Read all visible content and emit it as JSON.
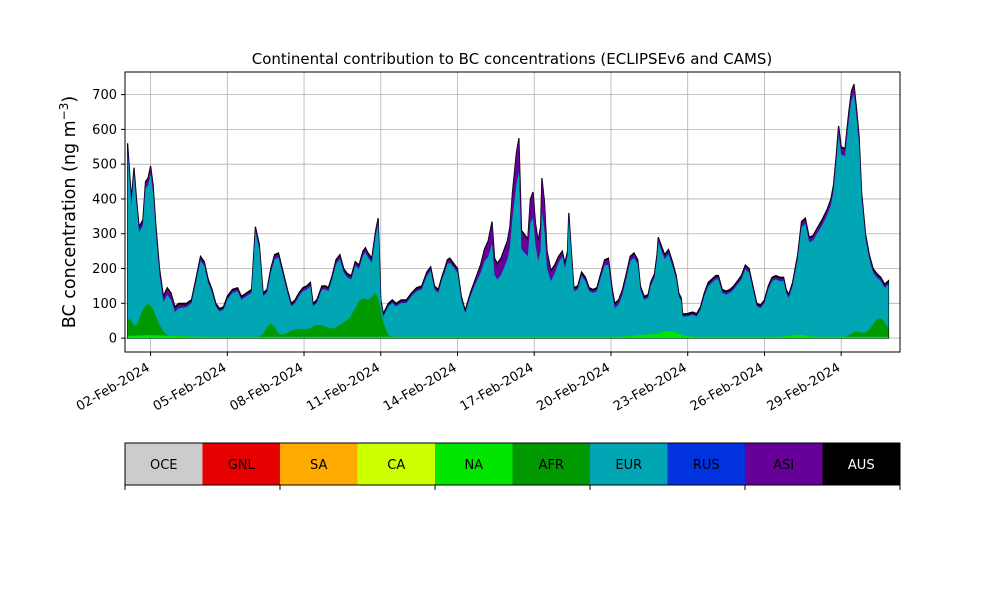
{
  "chart_data": {
    "type": "area",
    "stacked": true,
    "title": "Continental contribution to BC concentrations (ECLIPSEv6 and CAMS)",
    "ylabel_main": "BC concentration (ng m",
    "ylabel_sup": "−3",
    "ylabel_close": ")",
    "xlabel": "",
    "ylim": [
      -40,
      765
    ],
    "yticks": [
      0,
      100,
      200,
      300,
      400,
      500,
      600,
      700
    ],
    "xlim": [
      0.0,
      30.3
    ],
    "xticks": [
      {
        "day": 1.0,
        "label": "02-Feb-2024"
      },
      {
        "day": 4.0,
        "label": "05-Feb-2024"
      },
      {
        "day": 7.0,
        "label": "08-Feb-2024"
      },
      {
        "day": 10.0,
        "label": "11-Feb-2024"
      },
      {
        "day": 13.0,
        "label": "14-Feb-2024"
      },
      {
        "day": 16.0,
        "label": "17-Feb-2024"
      },
      {
        "day": 19.0,
        "label": "20-Feb-2024"
      },
      {
        "day": 22.0,
        "label": "23-Feb-2024"
      },
      {
        "day": 25.0,
        "label": "26-Feb-2024"
      },
      {
        "day": 28.0,
        "label": "29-Feb-2024"
      }
    ],
    "grid": true,
    "x_note": "x values are in days; x tick labels are the corresponding dates",
    "total_points": [
      [
        0.1,
        560
      ],
      [
        0.25,
        400
      ],
      [
        0.35,
        490
      ],
      [
        0.45,
        400
      ],
      [
        0.55,
        320
      ],
      [
        0.7,
        340
      ],
      [
        0.8,
        450
      ],
      [
        0.9,
        460
      ],
      [
        1.0,
        495
      ],
      [
        1.1,
        440
      ],
      [
        1.2,
        330
      ],
      [
        1.35,
        200
      ],
      [
        1.5,
        120
      ],
      [
        1.65,
        145
      ],
      [
        1.8,
        130
      ],
      [
        1.95,
        90
      ],
      [
        2.1,
        100
      ],
      [
        2.4,
        100
      ],
      [
        2.6,
        110
      ],
      [
        2.8,
        180
      ],
      [
        2.95,
        235
      ],
      [
        3.1,
        220
      ],
      [
        3.25,
        170
      ],
      [
        3.4,
        140
      ],
      [
        3.55,
        100
      ],
      [
        3.7,
        85
      ],
      [
        3.85,
        90
      ],
      [
        4.0,
        120
      ],
      [
        4.2,
        140
      ],
      [
        4.4,
        145
      ],
      [
        4.55,
        120
      ],
      [
        4.75,
        130
      ],
      [
        4.95,
        140
      ],
      [
        5.1,
        320
      ],
      [
        5.25,
        270
      ],
      [
        5.4,
        130
      ],
      [
        5.55,
        140
      ],
      [
        5.7,
        200
      ],
      [
        5.85,
        240
      ],
      [
        6.0,
        245
      ],
      [
        6.15,
        200
      ],
      [
        6.35,
        140
      ],
      [
        6.5,
        100
      ],
      [
        6.65,
        110
      ],
      [
        6.8,
        130
      ],
      [
        6.95,
        145
      ],
      [
        7.1,
        150
      ],
      [
        7.25,
        160
      ],
      [
        7.35,
        100
      ],
      [
        7.5,
        110
      ],
      [
        7.7,
        150
      ],
      [
        7.85,
        150
      ],
      [
        7.95,
        145
      ],
      [
        8.1,
        180
      ],
      [
        8.25,
        225
      ],
      [
        8.4,
        240
      ],
      [
        8.55,
        200
      ],
      [
        8.7,
        185
      ],
      [
        8.85,
        180
      ],
      [
        9.0,
        220
      ],
      [
        9.15,
        210
      ],
      [
        9.3,
        250
      ],
      [
        9.4,
        260
      ],
      [
        9.5,
        245
      ],
      [
        9.65,
        230
      ],
      [
        9.8,
        310
      ],
      [
        9.9,
        345
      ],
      [
        10.0,
        110
      ],
      [
        10.1,
        70
      ],
      [
        10.3,
        100
      ],
      [
        10.45,
        110
      ],
      [
        10.6,
        100
      ],
      [
        10.8,
        110
      ],
      [
        11.0,
        110
      ],
      [
        11.2,
        130
      ],
      [
        11.4,
        145
      ],
      [
        11.6,
        150
      ],
      [
        11.8,
        190
      ],
      [
        11.95,
        205
      ],
      [
        12.1,
        150
      ],
      [
        12.25,
        140
      ],
      [
        12.4,
        180
      ],
      [
        12.5,
        200
      ],
      [
        12.6,
        225
      ],
      [
        12.7,
        230
      ],
      [
        12.85,
        215
      ],
      [
        13.0,
        200
      ],
      [
        13.15,
        120
      ],
      [
        13.3,
        80
      ],
      [
        13.5,
        130
      ],
      [
        13.7,
        170
      ],
      [
        13.9,
        210
      ],
      [
        14.05,
        255
      ],
      [
        14.2,
        280
      ],
      [
        14.35,
        335
      ],
      [
        14.45,
        230
      ],
      [
        14.55,
        215
      ],
      [
        14.7,
        230
      ],
      [
        14.85,
        260
      ],
      [
        14.95,
        280
      ],
      [
        15.05,
        320
      ],
      [
        15.15,
        420
      ],
      [
        15.3,
        530
      ],
      [
        15.4,
        575
      ],
      [
        15.5,
        310
      ],
      [
        15.6,
        300
      ],
      [
        15.75,
        285
      ],
      [
        15.85,
        400
      ],
      [
        15.95,
        420
      ],
      [
        16.05,
        330
      ],
      [
        16.15,
        280
      ],
      [
        16.25,
        320
      ],
      [
        16.3,
        460
      ],
      [
        16.4,
        390
      ],
      [
        16.5,
        250
      ],
      [
        16.65,
        195
      ],
      [
        16.8,
        210
      ],
      [
        16.95,
        235
      ],
      [
        17.1,
        250
      ],
      [
        17.2,
        215
      ],
      [
        17.3,
        250
      ],
      [
        17.35,
        360
      ],
      [
        17.45,
        250
      ],
      [
        17.55,
        145
      ],
      [
        17.7,
        150
      ],
      [
        17.85,
        190
      ],
      [
        18.0,
        175
      ],
      [
        18.15,
        145
      ],
      [
        18.3,
        140
      ],
      [
        18.45,
        145
      ],
      [
        18.6,
        185
      ],
      [
        18.75,
        225
      ],
      [
        18.9,
        230
      ],
      [
        19.05,
        140
      ],
      [
        19.15,
        100
      ],
      [
        19.3,
        110
      ],
      [
        19.45,
        140
      ],
      [
        19.6,
        185
      ],
      [
        19.75,
        235
      ],
      [
        19.9,
        245
      ],
      [
        20.05,
        225
      ],
      [
        20.15,
        150
      ],
      [
        20.3,
        120
      ],
      [
        20.45,
        125
      ],
      [
        20.55,
        160
      ],
      [
        20.7,
        185
      ],
      [
        20.8,
        240
      ],
      [
        20.85,
        290
      ],
      [
        20.95,
        270
      ],
      [
        21.1,
        240
      ],
      [
        21.25,
        255
      ],
      [
        21.4,
        220
      ],
      [
        21.55,
        180
      ],
      [
        21.65,
        130
      ],
      [
        21.75,
        115
      ],
      [
        21.8,
        70
      ],
      [
        21.95,
        70
      ],
      [
        22.2,
        75
      ],
      [
        22.35,
        70
      ],
      [
        22.5,
        90
      ],
      [
        22.65,
        130
      ],
      [
        22.8,
        160
      ],
      [
        22.95,
        170
      ],
      [
        23.1,
        180
      ],
      [
        23.2,
        180
      ],
      [
        23.35,
        140
      ],
      [
        23.5,
        135
      ],
      [
        23.65,
        140
      ],
      [
        23.8,
        150
      ],
      [
        23.95,
        165
      ],
      [
        24.1,
        180
      ],
      [
        24.25,
        210
      ],
      [
        24.4,
        200
      ],
      [
        24.55,
        150
      ],
      [
        24.7,
        100
      ],
      [
        24.85,
        95
      ],
      [
        25.0,
        110
      ],
      [
        25.15,
        150
      ],
      [
        25.3,
        175
      ],
      [
        25.45,
        180
      ],
      [
        25.6,
        175
      ],
      [
        25.75,
        175
      ],
      [
        25.85,
        140
      ],
      [
        25.95,
        125
      ],
      [
        26.1,
        160
      ],
      [
        26.3,
        240
      ],
      [
        26.45,
        335
      ],
      [
        26.6,
        345
      ],
      [
        26.75,
        290
      ],
      [
        26.9,
        295
      ],
      [
        27.05,
        315
      ],
      [
        27.25,
        340
      ],
      [
        27.45,
        370
      ],
      [
        27.6,
        400
      ],
      [
        27.7,
        440
      ],
      [
        27.8,
        520
      ],
      [
        27.9,
        610
      ],
      [
        28.0,
        550
      ],
      [
        28.15,
        545
      ],
      [
        28.3,
        650
      ],
      [
        28.4,
        710
      ],
      [
        28.5,
        730
      ],
      [
        28.6,
        660
      ],
      [
        28.7,
        580
      ],
      [
        28.8,
        420
      ],
      [
        28.95,
        300
      ],
      [
        29.1,
        240
      ],
      [
        29.25,
        200
      ],
      [
        29.4,
        185
      ],
      [
        29.55,
        175
      ],
      [
        29.7,
        155
      ],
      [
        29.85,
        165
      ]
    ],
    "legend": [
      {
        "code": "OCE",
        "color": "#cccccc"
      },
      {
        "code": "GNL",
        "color": "#e60000"
      },
      {
        "code": "SA",
        "color": "#ffaa00"
      },
      {
        "code": "CA",
        "color": "#ccff00"
      },
      {
        "code": "NA",
        "color": "#00e600"
      },
      {
        "code": "AFR",
        "color": "#009900"
      },
      {
        "code": "EUR",
        "color": "#00a6b3"
      },
      {
        "code": "RUS",
        "color": "#0033dd"
      },
      {
        "code": "ASI",
        "color": "#660099"
      },
      {
        "code": "AUS",
        "color": "#000000"
      }
    ],
    "series_order_bottom_to_top": [
      "NA",
      "AFR",
      "EUR",
      "RUS",
      "ASI",
      "AUS"
    ]
  }
}
